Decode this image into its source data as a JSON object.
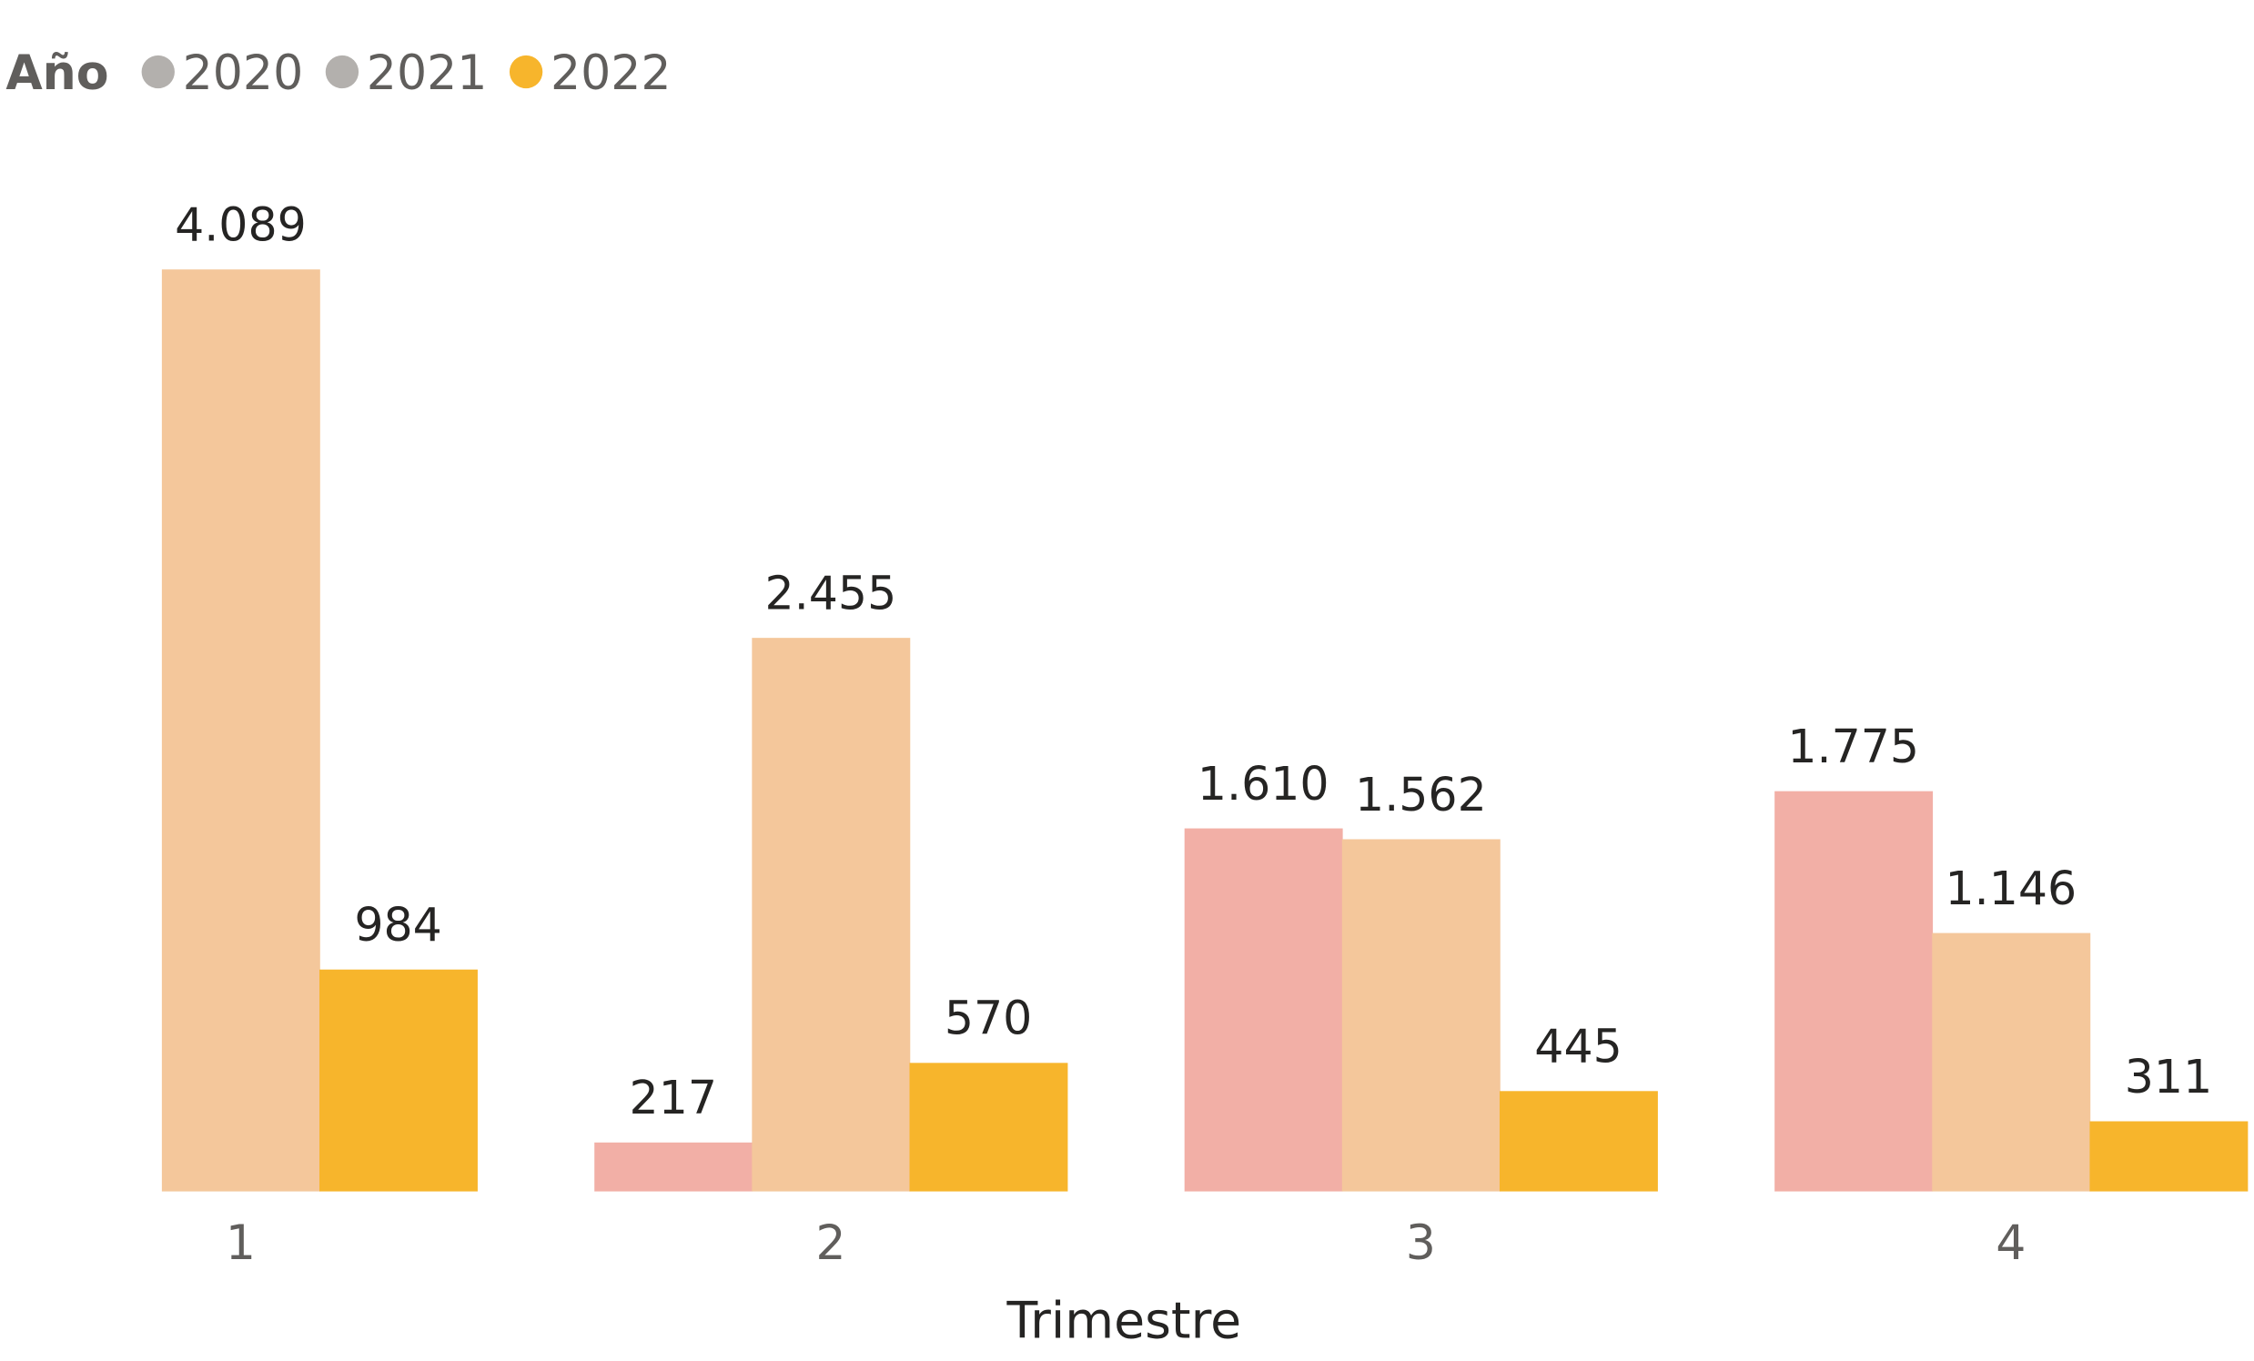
{
  "chart_data": {
    "type": "grouped_bar",
    "legend_title": "Año",
    "x_label": "Trimestre",
    "categories": [
      "1",
      "2",
      "3",
      "4"
    ],
    "series": [
      {
        "name": "2020",
        "color": "#F2AFA6",
        "legend_color": "#B3B0AD",
        "values": [
          null,
          217,
          1610,
          1775
        ],
        "value_labels": [
          null,
          "217",
          "1.610",
          "1.775"
        ]
      },
      {
        "name": "2021",
        "color": "#F4C79B",
        "legend_color": "#B3B0AD",
        "values": [
          4089,
          2455,
          1562,
          1146
        ],
        "value_labels": [
          "4.089",
          "2.455",
          "1.562",
          "1.146"
        ]
      },
      {
        "name": "2022",
        "color": "#F7B52C",
        "legend_color": "#F7B52C",
        "values": [
          984,
          570,
          445,
          311
        ],
        "value_labels": [
          "984",
          "570",
          "445",
          "311"
        ]
      }
    ],
    "ylim": [
      0,
      4500
    ],
    "legend_position": "top-left"
  }
}
